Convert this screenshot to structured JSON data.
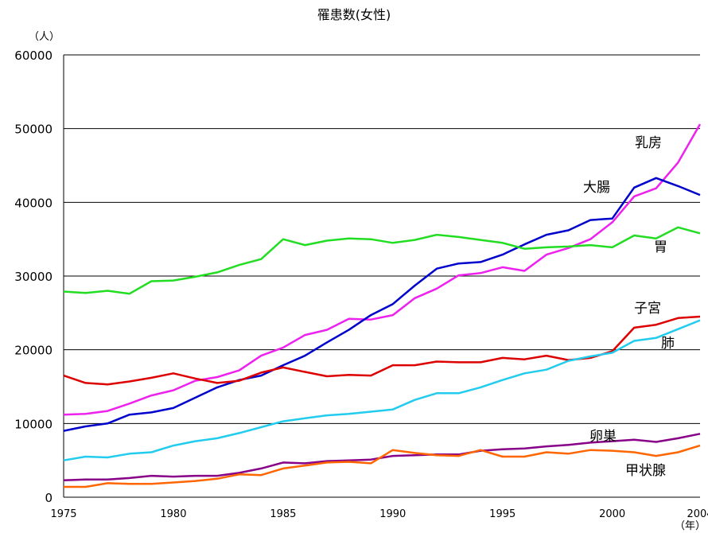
{
  "chart_data": {
    "type": "line",
    "title": "罹患数(女性)",
    "ylabel": "（人）",
    "xlabel": "（年）",
    "ylim": [
      0,
      60000
    ],
    "yticks": [
      0,
      10000,
      20000,
      30000,
      40000,
      50000,
      60000
    ],
    "xlim": [
      1975,
      2004
    ],
    "xticks": [
      1975,
      1980,
      1985,
      1990,
      1995,
      2000,
      2004
    ],
    "grid": true,
    "x": [
      1975,
      1976,
      1977,
      1978,
      1979,
      1980,
      1981,
      1982,
      1983,
      1984,
      1985,
      1986,
      1987,
      1988,
      1989,
      1990,
      1991,
      1992,
      1993,
      1994,
      1995,
      1996,
      1997,
      1998,
      1999,
      2000,
      2001,
      2002,
      2003,
      2004
    ],
    "series": [
      {
        "name": "乳房",
        "color": "#ee22ee",
        "values": [
          11200,
          11300,
          11700,
          12700,
          13800,
          14500,
          15800,
          16300,
          17200,
          19200,
          20300,
          22000,
          22700,
          24200,
          24100,
          24700,
          27000,
          28300,
          30100,
          30400,
          31200,
          30700,
          32900,
          33800,
          35000,
          37300,
          40800,
          41900,
          45400,
          50600
        ]
      },
      {
        "name": "大腸",
        "color": "#0000cc",
        "values": [
          9000,
          9600,
          10000,
          11200,
          11500,
          12100,
          13500,
          14900,
          15900,
          16500,
          17900,
          19200,
          21000,
          22700,
          24700,
          26200,
          28700,
          31000,
          31700,
          31900,
          32900,
          34300,
          35600,
          36200,
          37600,
          37800,
          42000,
          43300,
          42200,
          41000
        ]
      },
      {
        "name": "胃",
        "color": "#22dd22",
        "values": [
          27900,
          27700,
          28000,
          27600,
          29300,
          29400,
          29900,
          30500,
          31500,
          32300,
          35000,
          34200,
          34800,
          35100,
          35000,
          34500,
          34900,
          35600,
          35300,
          34900,
          34500,
          33700,
          33900,
          34000,
          34200,
          33900,
          35500,
          35100,
          36600,
          35800
        ]
      },
      {
        "name": "子宮",
        "color": "#dd0000",
        "values": [
          16500,
          15500,
          15300,
          15700,
          16200,
          16800,
          16100,
          15500,
          15800,
          16900,
          17600,
          17000,
          16400,
          16600,
          16500,
          17900,
          17900,
          18400,
          18300,
          18300,
          18900,
          18700,
          19200,
          18600,
          18900,
          19800,
          23000,
          23400,
          24300,
          24500
        ]
      },
      {
        "name": "肺",
        "color": "#22ccee",
        "values": [
          5000,
          5500,
          5400,
          5900,
          6100,
          7000,
          7600,
          8000,
          8700,
          9500,
          10300,
          10700,
          11100,
          11300,
          11600,
          11900,
          13200,
          14100,
          14100,
          14900,
          15900,
          16800,
          17300,
          18500,
          19100,
          19600,
          21200,
          21600,
          22800,
          24000
        ]
      },
      {
        "name": "卵巣",
        "color": "#880088",
        "values": [
          2300,
          2400,
          2400,
          2600,
          2900,
          2800,
          2900,
          2900,
          3300,
          3900,
          4700,
          4600,
          4900,
          5000,
          5100,
          5600,
          5700,
          5800,
          5800,
          6300,
          6500,
          6600,
          6900,
          7100,
          7400,
          7600,
          7800,
          7500,
          8000,
          8600
        ]
      },
      {
        "name": "甲状腺",
        "color": "#ff6600",
        "values": [
          1400,
          1400,
          1900,
          1800,
          1800,
          2000,
          2200,
          2500,
          3100,
          3000,
          3900,
          4300,
          4700,
          4800,
          4600,
          6400,
          6000,
          5700,
          5600,
          6400,
          5500,
          5500,
          6100,
          5900,
          6400,
          6300,
          6100,
          5600,
          6100,
          7000
        ]
      }
    ],
    "labels": {
      "breast": "乳房",
      "colon": "大腸",
      "stomach": "胃",
      "uterus": "子宮",
      "lung": "肺",
      "ovary": "卵巣",
      "thyroid": "甲状腺"
    }
  }
}
